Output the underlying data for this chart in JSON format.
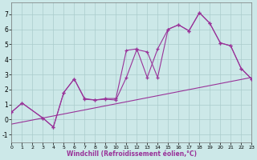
{
  "bg_color": "#cce8e8",
  "grid_color": "#aacccc",
  "line_color": "#993399",
  "xlim": [
    0,
    23
  ],
  "ylim": [
    -1.5,
    7.8
  ],
  "xticks": [
    0,
    1,
    2,
    3,
    4,
    5,
    6,
    7,
    8,
    9,
    10,
    11,
    12,
    13,
    14,
    15,
    16,
    17,
    18,
    19,
    20,
    21,
    22,
    23
  ],
  "yticks": [
    -1,
    0,
    1,
    2,
    3,
    4,
    5,
    6,
    7
  ],
  "xlabel": "Windchill (Refroidissement éolien,°C)",
  "refline_x": [
    0,
    23
  ],
  "refline_y": [
    -0.3,
    2.8
  ],
  "series1_x": [
    0,
    1,
    3,
    4,
    5,
    6,
    7,
    8,
    9,
    10,
    11,
    12,
    13,
    14,
    15,
    16,
    17,
    18,
    19,
    20,
    21,
    22,
    23
  ],
  "series1_y": [
    0.5,
    1.1,
    0.1,
    -0.5,
    1.8,
    2.7,
    1.4,
    1.3,
    1.4,
    1.4,
    4.6,
    4.7,
    2.8,
    4.7,
    6.0,
    6.3,
    5.9,
    7.1,
    6.4,
    5.1,
    4.9,
    3.4,
    2.7
  ],
  "series2_x": [
    0,
    1,
    3,
    4,
    5,
    6,
    7,
    8,
    9,
    10,
    11,
    12,
    13,
    14,
    15,
    16,
    17,
    18,
    19,
    20,
    21,
    22,
    23
  ],
  "series2_y": [
    0.5,
    1.1,
    0.1,
    -0.5,
    1.8,
    2.7,
    1.35,
    1.3,
    1.35,
    1.3,
    2.8,
    4.65,
    4.5,
    2.8,
    6.0,
    6.3,
    5.9,
    7.1,
    6.4,
    5.1,
    4.9,
    3.4,
    2.7
  ]
}
